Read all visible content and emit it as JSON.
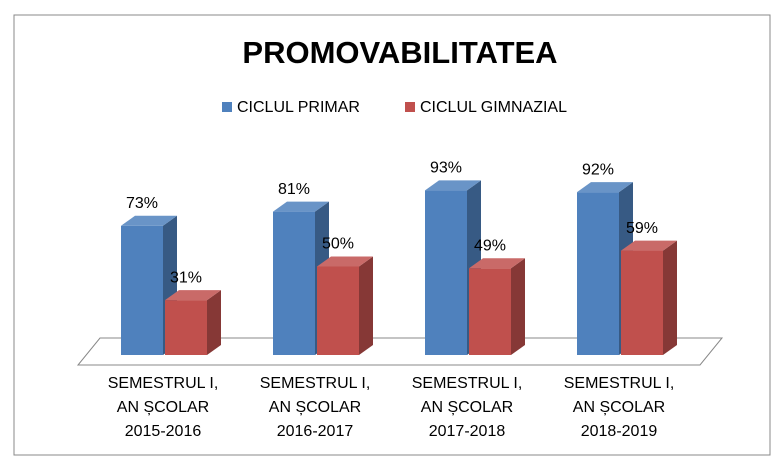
{
  "chart_data": {
    "type": "bar3d",
    "title": "PROMOVABILITATEA",
    "categories": [
      "SEMESTRUL I,\nAN ȘCOLAR\n2015-2016",
      "SEMESTRUL I,\nAN ȘCOLAR\n2016-2017",
      "SEMESTRUL I,\nAN ȘCOLAR\n2017-2018",
      "SEMESTRUL I,\nAN ȘCOLAR\n2018-2019"
    ],
    "series": [
      {
        "name": "CICLUL PRIMAR",
        "color": "#4f81bd",
        "values": [
          73,
          81,
          93,
          92
        ],
        "value_labels": [
          "73%",
          "81%",
          "93%",
          "92%"
        ]
      },
      {
        "name": "CICLUL GIMNAZIAL",
        "color": "#c0504d",
        "values": [
          31,
          50,
          49,
          59
        ],
        "value_labels": [
          "31%",
          "50%",
          "49%",
          "59%"
        ]
      }
    ],
    "legend": "top"
  }
}
